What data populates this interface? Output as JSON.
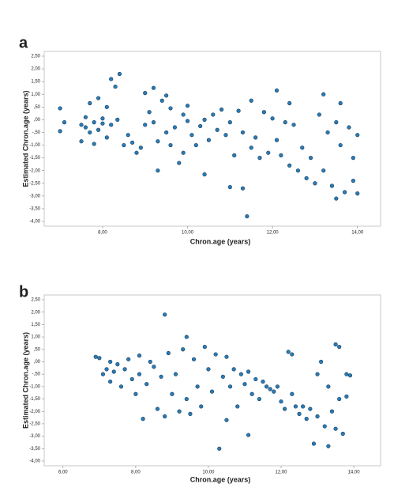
{
  "chart_data": [
    {
      "type": "scatter",
      "panel": "a",
      "xlabel": "Chron.age (years)",
      "ylabel": "Estimated Chron.age (years)",
      "color": "#2b7bb5",
      "xlim": [
        6.7,
        14.47
      ],
      "ylim": [
        -4,
        2.5
      ],
      "xticks": [
        {
          "value": 8,
          "label": "8,00"
        },
        {
          "value": 10,
          "label": "10,00"
        },
        {
          "value": 12,
          "label": "12,00"
        },
        {
          "value": 14,
          "label": "14,00"
        }
      ],
      "yticks": [
        {
          "value": 2.5,
          "label": "2,50"
        },
        {
          "value": 2,
          "label": "2,00"
        },
        {
          "value": 1.5,
          "label": "1,50"
        },
        {
          "value": 1,
          "label": "1,00"
        },
        {
          "value": 0.5,
          "label": ",50"
        },
        {
          "value": 0,
          "label": ",00"
        },
        {
          "value": -0.5,
          "label": "-,50"
        },
        {
          "value": -1,
          "label": "-1,00"
        },
        {
          "value": -1.5,
          "label": "-1,50"
        },
        {
          "value": -2,
          "label": "-2,00"
        },
        {
          "value": -2.5,
          "label": "-2,50"
        },
        {
          "value": -3,
          "label": "-3,00"
        },
        {
          "value": -3.5,
          "label": "-3,50"
        },
        {
          "value": -4,
          "label": "-4,00"
        }
      ],
      "x": [
        7.0,
        7.0,
        7.1,
        7.5,
        7.5,
        7.6,
        7.6,
        7.7,
        7.7,
        7.8,
        7.8,
        7.9,
        7.9,
        8.0,
        8.0,
        8.1,
        8.1,
        8.2,
        8.2,
        8.3,
        8.35,
        8.4,
        8.5,
        8.6,
        8.7,
        8.8,
        8.9,
        9.0,
        9.0,
        9.1,
        9.2,
        9.2,
        9.3,
        9.3,
        9.4,
        9.5,
        9.5,
        9.6,
        9.6,
        9.7,
        9.8,
        9.9,
        9.9,
        10.0,
        10.0,
        10.1,
        10.2,
        10.3,
        10.4,
        10.4,
        10.5,
        10.6,
        10.7,
        10.8,
        10.9,
        11.0,
        11.0,
        11.1,
        11.2,
        11.3,
        11.3,
        11.4,
        11.5,
        11.5,
        11.6,
        11.7,
        11.8,
        11.9,
        12.0,
        12.1,
        12.1,
        12.2,
        12.3,
        12.4,
        12.4,
        12.5,
        12.6,
        12.7,
        12.8,
        12.9,
        13.0,
        13.1,
        13.2,
        13.2,
        13.3,
        13.4,
        13.5,
        13.5,
        13.6,
        13.6,
        13.7,
        13.8,
        13.9,
        13.9,
        14.0,
        14.0
      ],
      "values": [
        0.45,
        -0.45,
        -0.1,
        -0.2,
        -0.85,
        -0.3,
        0.1,
        -0.5,
        0.65,
        -0.95,
        -0.1,
        0.85,
        -0.4,
        -0.15,
        0.05,
        -0.7,
        0.5,
        1.6,
        -0.2,
        1.3,
        0.0,
        1.8,
        -1.0,
        -0.6,
        -0.9,
        -1.3,
        -1.1,
        1.05,
        -0.2,
        0.3,
        1.25,
        -0.1,
        -2.0,
        -0.85,
        0.75,
        0.95,
        -0.5,
        0.45,
        -1.0,
        -0.3,
        -1.7,
        0.2,
        -1.3,
        0.55,
        -0.05,
        -0.6,
        -1.0,
        -0.25,
        -2.15,
        0.0,
        -0.8,
        0.2,
        -0.4,
        0.4,
        -0.6,
        -2.65,
        -0.1,
        -1.4,
        0.35,
        -0.5,
        -2.7,
        -3.8,
        0.75,
        -1.1,
        -0.7,
        -1.5,
        0.3,
        -1.3,
        0.05,
        1.15,
        -0.8,
        -1.4,
        -0.1,
        0.65,
        -1.8,
        -0.2,
        -2.0,
        -1.1,
        -2.3,
        -1.5,
        -2.5,
        0.2,
        1.0,
        -2.0,
        -0.5,
        -2.6,
        -0.1,
        -3.1,
        0.65,
        -1.0,
        -2.85,
        -0.3,
        -1.5,
        -2.4,
        -0.6,
        -2.9
      ]
    },
    {
      "type": "scatter",
      "panel": "b",
      "xlabel": "Chron.age (years)",
      "ylabel": "Estimated Chron.age (years)",
      "color": "#2b7bb5",
      "xlim": [
        5.57,
        14.65
      ],
      "ylim": [
        -4,
        2.5
      ],
      "xticks": [
        {
          "value": 6,
          "label": "6,00"
        },
        {
          "value": 8,
          "label": "8,00"
        },
        {
          "value": 10,
          "label": "10,00"
        },
        {
          "value": 12,
          "label": "12,00"
        },
        {
          "value": 14,
          "label": "14,00"
        }
      ],
      "yticks": [
        {
          "value": 2.5,
          "label": "2,50"
        },
        {
          "value": 2,
          "label": "2,00"
        },
        {
          "value": 1.5,
          "label": "1,50"
        },
        {
          "value": 1,
          "label": "1,00"
        },
        {
          "value": 0.5,
          "label": ",50"
        },
        {
          "value": 0,
          "label": ",00"
        },
        {
          "value": -0.5,
          "label": "-,50"
        },
        {
          "value": -1,
          "label": "-1,00"
        },
        {
          "value": -1.5,
          "label": "-1,50"
        },
        {
          "value": -2,
          "label": "-2,00"
        },
        {
          "value": -2.5,
          "label": "-2,50"
        },
        {
          "value": -3,
          "label": "-3,00"
        },
        {
          "value": -3.5,
          "label": "-3,50"
        },
        {
          "value": -4,
          "label": "-4,00"
        }
      ],
      "x": [
        6.9,
        7.0,
        7.1,
        7.2,
        7.3,
        7.3,
        7.4,
        7.5,
        7.6,
        7.7,
        7.8,
        7.9,
        8.0,
        8.1,
        8.1,
        8.2,
        8.3,
        8.4,
        8.5,
        8.6,
        8.7,
        8.8,
        8.8,
        8.9,
        9.0,
        9.1,
        9.2,
        9.3,
        9.4,
        9.4,
        9.5,
        9.6,
        9.7,
        9.8,
        9.9,
        10.0,
        10.1,
        10.2,
        10.3,
        10.4,
        10.5,
        10.5,
        10.6,
        10.7,
        10.8,
        10.9,
        11.0,
        11.1,
        11.1,
        11.2,
        11.3,
        11.4,
        11.5,
        11.6,
        11.7,
        11.8,
        11.9,
        12.0,
        12.1,
        12.2,
        12.3,
        12.3,
        12.4,
        12.5,
        12.6,
        12.7,
        12.8,
        12.9,
        13.0,
        13.0,
        13.1,
        13.2,
        13.3,
        13.3,
        13.4,
        13.5,
        13.5,
        13.6,
        13.6,
        13.7,
        13.8,
        13.8,
        13.9
      ],
      "values": [
        0.2,
        0.15,
        -0.5,
        -0.3,
        0.0,
        -0.8,
        -0.4,
        -0.1,
        -1.0,
        -0.3,
        0.1,
        -0.7,
        -1.3,
        0.25,
        -0.5,
        -2.3,
        -0.9,
        0.0,
        -0.2,
        -1.9,
        -0.6,
        1.9,
        -2.2,
        0.35,
        -1.3,
        -0.5,
        -2.0,
        0.5,
        1.0,
        -1.5,
        -2.1,
        0.1,
        -1.0,
        -1.8,
        0.6,
        -0.3,
        -1.2,
        0.3,
        -3.5,
        -0.6,
        -2.35,
        0.2,
        -1.0,
        -0.3,
        -1.8,
        -0.5,
        -0.9,
        -2.95,
        -0.4,
        -1.3,
        -0.7,
        -1.5,
        -0.8,
        -1.0,
        -1.1,
        -1.2,
        -1.0,
        -1.6,
        -1.9,
        0.4,
        0.3,
        -1.3,
        -1.8,
        -2.1,
        -1.8,
        -2.3,
        -1.9,
        -3.3,
        -0.5,
        -2.2,
        0.0,
        -2.6,
        -1.0,
        -3.4,
        -2.0,
        0.7,
        -2.7,
        0.6,
        -1.5,
        -2.9,
        -1.4,
        -0.5,
        -0.55
      ]
    }
  ]
}
